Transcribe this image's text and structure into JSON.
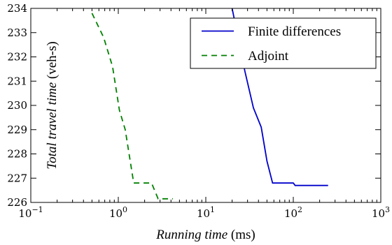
{
  "chart_data": {
    "type": "line",
    "xscale": "log",
    "xlim": [
      0.1,
      1000
    ],
    "ylim": [
      226,
      234
    ],
    "xticks": [
      0.1,
      1,
      10,
      100,
      1000
    ],
    "xtick_labels": [
      {
        "base": "10",
        "exp": "−1"
      },
      {
        "base": "10",
        "exp": "0"
      },
      {
        "base": "10",
        "exp": "1"
      },
      {
        "base": "10",
        "exp": "2"
      },
      {
        "base": "10",
        "exp": "3"
      }
    ],
    "yticks": [
      226,
      227,
      228,
      229,
      230,
      231,
      232,
      233,
      234
    ],
    "ytick_labels": [
      "226",
      "227",
      "228",
      "229",
      "230",
      "231",
      "232",
      "233",
      "234"
    ],
    "xlabel": {
      "italic": "Running time",
      "unit": " (ms)"
    },
    "ylabel": {
      "italic": "Total travel time",
      "unit": " (veh-s)"
    },
    "grid": false,
    "legend_position": "top-right",
    "series": [
      {
        "name": "Finite differences",
        "color": "#0000cc",
        "style": "solid",
        "x": [
          20,
          24,
          28,
          35,
          43,
          50,
          58,
          100,
          105,
          250
        ],
        "y": [
          234,
          232.6,
          231.4,
          229.9,
          229.1,
          227.7,
          226.8,
          226.8,
          226.7,
          226.7
        ]
      },
      {
        "name": "Adjoint",
        "color": "#008000",
        "style": "dashed",
        "x": [
          0.5,
          0.68,
          0.86,
          1.03,
          1.2,
          1.5,
          2.4,
          2.85,
          4.2
        ],
        "y": [
          233.8,
          232.8,
          231.6,
          229.8,
          229.0,
          226.8,
          226.8,
          226.15,
          226.15
        ]
      }
    ]
  }
}
